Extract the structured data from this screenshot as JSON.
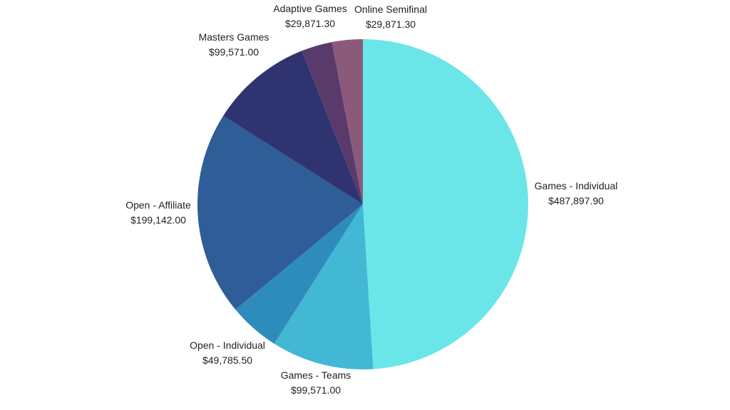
{
  "chart_data": {
    "type": "pie",
    "title": "",
    "start_angle_deg": 0,
    "direction": "clockwise",
    "legend": "none",
    "slices": [
      {
        "label": "Games - Individual",
        "value_text": "$487,897.90",
        "value": 487897.9,
        "color": "#6ae6e9"
      },
      {
        "label": "Games - Teams",
        "value_text": "$99,571.00",
        "value": 99571.0,
        "color": "#42b8d5"
      },
      {
        "label": "Open - Individual",
        "value_text": "$49,785.50",
        "value": 49785.5,
        "color": "#2e8cbc"
      },
      {
        "label": "Open - Affiliate",
        "value_text": "$199,142.00",
        "value": 199142.0,
        "color": "#2e5d98"
      },
      {
        "label": "Masters Games",
        "value_text": "$99,571.00",
        "value": 99571.0,
        "color": "#2f3470"
      },
      {
        "label": "Adaptive Games",
        "value_text": "$29,871.30",
        "value": 29871.3,
        "color": "#5a3a6a"
      },
      {
        "label": "Online Semifinal",
        "value_text": "$29,871.30",
        "value": 29871.3,
        "color": "#8b5a7a"
      }
    ]
  }
}
